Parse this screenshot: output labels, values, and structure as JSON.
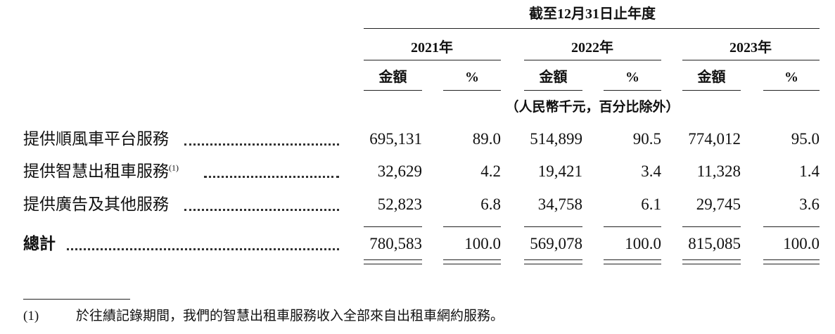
{
  "header": {
    "period": "截至12月31日止年度",
    "years": [
      "2021年",
      "2022年",
      "2023年"
    ],
    "columns": [
      "金額",
      "%",
      "金額",
      "%",
      "金額",
      "%"
    ],
    "unit_note": "（人民幣千元，百分比除外）"
  },
  "table": {
    "rows": [
      {
        "label": "提供順風車平台服務",
        "values": [
          "695,131",
          "89.0",
          "514,899",
          "90.5",
          "774,012",
          "95.0"
        ]
      },
      {
        "label": "提供智慧出租車服務",
        "note": "(1)",
        "values": [
          "32,629",
          "4.2",
          "19,421",
          "3.4",
          "11,328",
          "1.4"
        ]
      },
      {
        "label": "提供廣告及其他服務",
        "values": [
          "52,823",
          "6.8",
          "34,758",
          "6.1",
          "29,745",
          "3.6"
        ]
      },
      {
        "label": "總計",
        "values": [
          "780,583",
          "100.0",
          "569,078",
          "100.0",
          "815,085",
          "100.0"
        ]
      }
    ]
  },
  "footnote": {
    "marker": "(1)",
    "text": "於往績記錄期間，我們的智慧出租車服務收入全部來自出租車網約服務。"
  }
}
